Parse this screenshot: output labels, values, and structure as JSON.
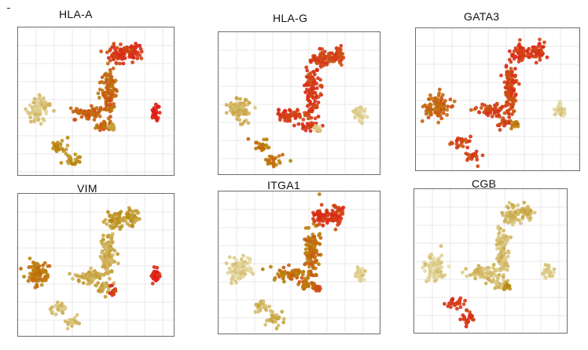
{
  "chart_data": [
    {
      "type": "scatter",
      "title": "HLA-A",
      "colors": {
        "highlight": "#b8860b",
        "compact": "#e2171b",
        "background": "#e8e0b0"
      },
      "clusters": {
        "left": 0.15,
        "stem": 0.65,
        "arm": 0.85,
        "bottom": 0.45,
        "right": 0.95,
        "tip": 0.3
      }
    },
    {
      "type": "scatter",
      "title": "HLA-G",
      "colors": {
        "highlight": "#b8860b",
        "compact": "#e2171b",
        "background": "#e8e0b0"
      },
      "clusters": {
        "left": 0.25,
        "stem": 0.85,
        "arm": 0.8,
        "bottom": 0.55,
        "right": 0.1,
        "tip": 0.15
      }
    },
    {
      "type": "scatter",
      "title": "GATA3",
      "colors": {
        "highlight": "#b8860b",
        "compact": "#e2171b",
        "background": "#e8e0b0"
      },
      "clusters": {
        "left": 0.65,
        "stem": 0.8,
        "arm": 0.85,
        "bottom": 0.8,
        "right": 0.1,
        "tip": 0.55
      }
    },
    {
      "type": "scatter",
      "title": "VIM",
      "colors": {
        "highlight": "#b8860b",
        "compact": "#e2171b",
        "background": "#e8e0b0"
      },
      "clusters": {
        "left": 0.55,
        "stem": 0.3,
        "arm": 0.4,
        "bottom": 0.2,
        "right": 0.95,
        "tip": 0.85
      }
    },
    {
      "type": "scatter",
      "title": "ITGA1",
      "colors": {
        "highlight": "#b8860b",
        "compact": "#e2171b",
        "background": "#e8e0b0"
      },
      "clusters": {
        "left": 0.1,
        "stem": 0.6,
        "arm": 0.85,
        "bottom": 0.25,
        "right": 0.1,
        "tip": 0.7
      }
    },
    {
      "type": "scatter",
      "title": "CGB",
      "colors": {
        "highlight": "#b8860b",
        "compact": "#e2171b",
        "background": "#e8e0b0"
      },
      "clusters": {
        "left": 0.1,
        "stem": 0.2,
        "arm": 0.25,
        "bottom": 0.85,
        "right": 0.1,
        "tip": 0.45
      }
    }
  ]
}
